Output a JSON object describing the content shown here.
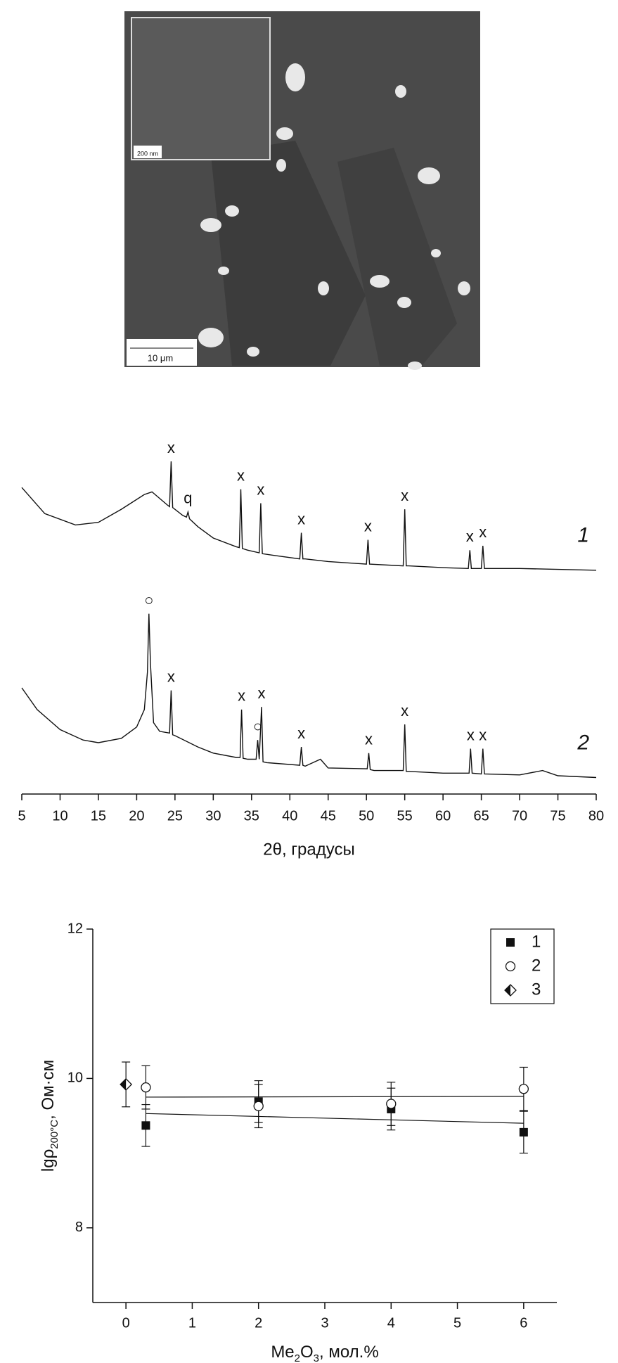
{
  "image": {
    "scale_bar": "10 μm",
    "inset_scale_bar": "200 nm"
  },
  "chart_data": [
    {
      "type": "line",
      "xlabel": "2θ, градусы",
      "xlim": [
        5,
        80
      ],
      "xticks": [
        5,
        10,
        15,
        20,
        25,
        30,
        35,
        40,
        45,
        50,
        55,
        60,
        65,
        70,
        75,
        80
      ],
      "ylim": [
        0,
        420
      ],
      "series": [
        {
          "name": "1",
          "color": "#111111",
          "x": [
            5,
            8,
            12,
            15,
            18,
            21,
            22,
            24,
            24.3,
            24.5,
            24.7,
            26,
            26.5,
            26.7,
            26.9,
            28,
            30,
            33,
            33.4,
            33.6,
            33.8,
            34.5,
            36,
            36.2,
            36.4,
            38,
            41.3,
            41.5,
            41.7,
            42,
            45,
            50,
            50.2,
            50.4,
            54.8,
            55,
            55.2,
            55.5,
            60,
            63.3,
            63.5,
            63.7,
            65,
            65.2,
            65.4,
            70,
            75,
            80
          ],
          "values": [
            352,
            322,
            309,
            312,
            327,
            344,
            347,
            332,
            330,
            382,
            329,
            320,
            318,
            324,
            316,
            307,
            294,
            284,
            283,
            350,
            282,
            280,
            277,
            334,
            276,
            274,
            270,
            300,
            270,
            270,
            267,
            264,
            292,
            264,
            262,
            327,
            262,
            262,
            260,
            259,
            280,
            259,
            259,
            285,
            259,
            259,
            258,
            257
          ]
        },
        {
          "name": "2",
          "color": "#111111",
          "x": [
            5,
            7,
            10,
            13,
            15,
            18,
            20,
            21,
            21.4,
            21.6,
            21.8,
            22.2,
            23,
            24.3,
            24.5,
            24.7,
            25,
            28,
            30,
            33,
            33.5,
            33.7,
            33.9,
            34.5,
            35.6,
            35.8,
            36,
            36.3,
            36.5,
            37,
            41.3,
            41.5,
            41.7,
            42,
            44,
            45,
            50.1,
            50.3,
            50.5,
            51,
            54.8,
            55,
            55.2,
            55.5,
            60,
            63.4,
            63.6,
            63.8,
            65,
            65.2,
            65.4,
            70,
            73,
            75,
            80
          ],
          "values": [
            122,
            97,
            74,
            62,
            59,
            64,
            77,
            97,
            140,
            207,
            150,
            82,
            72,
            70,
            119,
            68,
            67,
            54,
            47,
            42,
            42,
            97,
            41,
            40,
            40,
            62,
            40,
            100,
            37,
            36,
            33,
            54,
            33,
            32,
            40,
            30,
            29,
            47,
            28,
            27,
            27,
            80,
            26,
            26,
            24,
            24,
            52,
            24,
            23,
            52,
            23,
            22,
            27,
            21,
            19
          ]
        }
      ],
      "annotations": [
        {
          "text": "x",
          "series": 0,
          "x": 24.5
        },
        {
          "text": "q",
          "series": 0,
          "x": 26.7
        },
        {
          "text": "x",
          "series": 0,
          "x": 33.6
        },
        {
          "text": "x",
          "series": 0,
          "x": 36.2
        },
        {
          "text": "x",
          "series": 0,
          "x": 41.5
        },
        {
          "text": "x",
          "series": 0,
          "x": 50.2
        },
        {
          "text": "x",
          "series": 0,
          "x": 55
        },
        {
          "text": "x",
          "series": 0,
          "x": 63.5
        },
        {
          "text": "x",
          "series": 0,
          "x": 65.2
        },
        {
          "text": "○",
          "series": 1,
          "x": 21.6
        },
        {
          "text": "x",
          "series": 1,
          "x": 24.5
        },
        {
          "text": "x",
          "series": 1,
          "x": 33.7
        },
        {
          "text": "○",
          "series": 1,
          "x": 35.8
        },
        {
          "text": "x",
          "series": 1,
          "x": 36.3
        },
        {
          "text": "x",
          "series": 1,
          "x": 41.5
        },
        {
          "text": "x",
          "series": 1,
          "x": 50.3
        },
        {
          "text": "x",
          "series": 1,
          "x": 55
        },
        {
          "text": "x",
          "series": 1,
          "x": 63.6
        },
        {
          "text": "x",
          "series": 1,
          "x": 65.2
        }
      ]
    },
    {
      "type": "scatter",
      "xlabel": [
        {
          "text": "Me",
          "sub": false
        },
        {
          "text": "2",
          "sub": true
        },
        {
          "text": "O",
          "sub": false
        },
        {
          "text": "3",
          "sub": true
        },
        {
          "text": ", мол.%",
          "sub": false
        }
      ],
      "ylabel": [
        {
          "text": "lgρ",
          "sub": false
        },
        {
          "text": "200°C",
          "sub": true
        },
        {
          "text": ", Ом·см",
          "sub": false
        }
      ],
      "xlim": [
        -0.5,
        6.5
      ],
      "xticks": [
        0,
        1,
        2,
        3,
        4,
        5,
        6
      ],
      "ylim": [
        7,
        12
      ],
      "yticks": [
        8,
        10,
        12
      ],
      "legend": "upper right",
      "series": [
        {
          "name": "1",
          "marker": "square",
          "color": "#111111",
          "x": [
            0.3,
            2,
            4,
            6
          ],
          "values": [
            9.37,
            9.69,
            9.59,
            9.28
          ],
          "errors": [
            0.28,
            0.28,
            0.28,
            0.28
          ],
          "fit": {
            "x": [
              0.3,
              6
            ],
            "values": [
              9.53,
              9.4
            ]
          }
        },
        {
          "name": "2",
          "marker": "circle",
          "color": "#111111",
          "x": [
            0.3,
            2,
            4,
            6
          ],
          "values": [
            9.88,
            9.63,
            9.66,
            9.86
          ],
          "errors": [
            0.29,
            0.29,
            0.29,
            0.29
          ],
          "fit": {
            "x": [
              0.3,
              6
            ],
            "values": [
              9.75,
              9.76
            ]
          }
        },
        {
          "name": "3",
          "marker": "half-diamond",
          "color": "#111111",
          "x": [
            0
          ],
          "values": [
            9.92
          ],
          "errors": [
            0.3
          ]
        }
      ]
    }
  ]
}
